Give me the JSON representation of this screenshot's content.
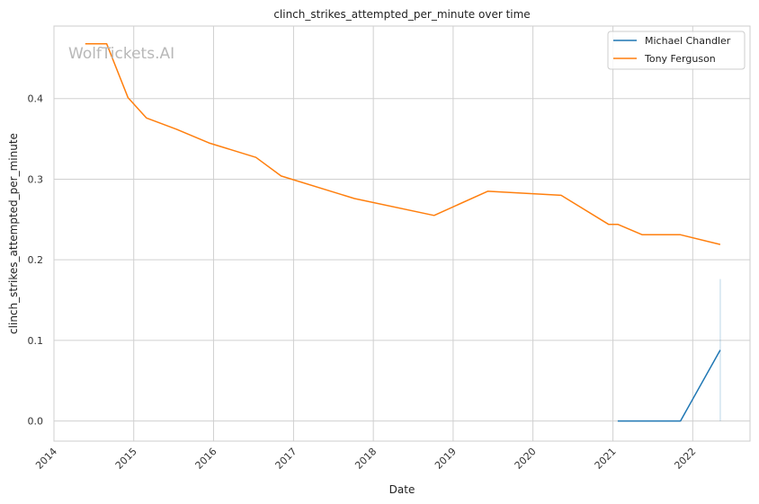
{
  "chart_data": {
    "type": "line",
    "title": "clinch_strikes_attempted_per_minute over time",
    "xlabel": "Date",
    "ylabel": "clinch_strikes_attempted_per_minute",
    "watermark": "WolfTickets.AI",
    "xlim": [
      "2014-01-01",
      "2022-09-20"
    ],
    "ylim": [
      -0.025,
      0.49
    ],
    "x_ticks": [
      "2014",
      "2015",
      "2016",
      "2017",
      "2018",
      "2019",
      "2020",
      "2021",
      "2022"
    ],
    "y_ticks": [
      "0.0",
      "0.1",
      "0.2",
      "0.3",
      "0.4"
    ],
    "grid": true,
    "legend_position": "top-right",
    "series": [
      {
        "name": "Michael Chandler",
        "color": "#1f77b4",
        "points": [
          [
            "2021-01-23",
            0.0
          ],
          [
            "2021-05-15",
            0.0
          ],
          [
            "2021-11-06",
            0.0
          ],
          [
            "2022-05-07",
            0.088
          ]
        ],
        "bands": [
          {
            "x": "2022-05-07",
            "low": 0.0,
            "high": 0.176
          }
        ]
      },
      {
        "name": "Tony Ferguson",
        "color": "#ff7f0e",
        "points": [
          [
            "2014-05-24",
            0.468
          ],
          [
            "2014-08-30",
            0.468
          ],
          [
            "2014-12-06",
            0.401
          ],
          [
            "2015-02-28",
            0.376
          ],
          [
            "2015-07-15",
            0.362
          ],
          [
            "2015-12-11",
            0.345
          ],
          [
            "2016-07-13",
            0.327
          ],
          [
            "2016-11-05",
            0.304
          ],
          [
            "2017-10-07",
            0.276
          ],
          [
            "2018-10-06",
            0.255
          ],
          [
            "2019-06-08",
            0.285
          ],
          [
            "2020-05-09",
            0.28
          ],
          [
            "2020-12-12",
            0.244
          ],
          [
            "2021-01-23",
            0.244
          ],
          [
            "2021-05-15",
            0.231
          ],
          [
            "2021-11-06",
            0.231
          ],
          [
            "2022-05-07",
            0.219
          ]
        ]
      }
    ]
  }
}
